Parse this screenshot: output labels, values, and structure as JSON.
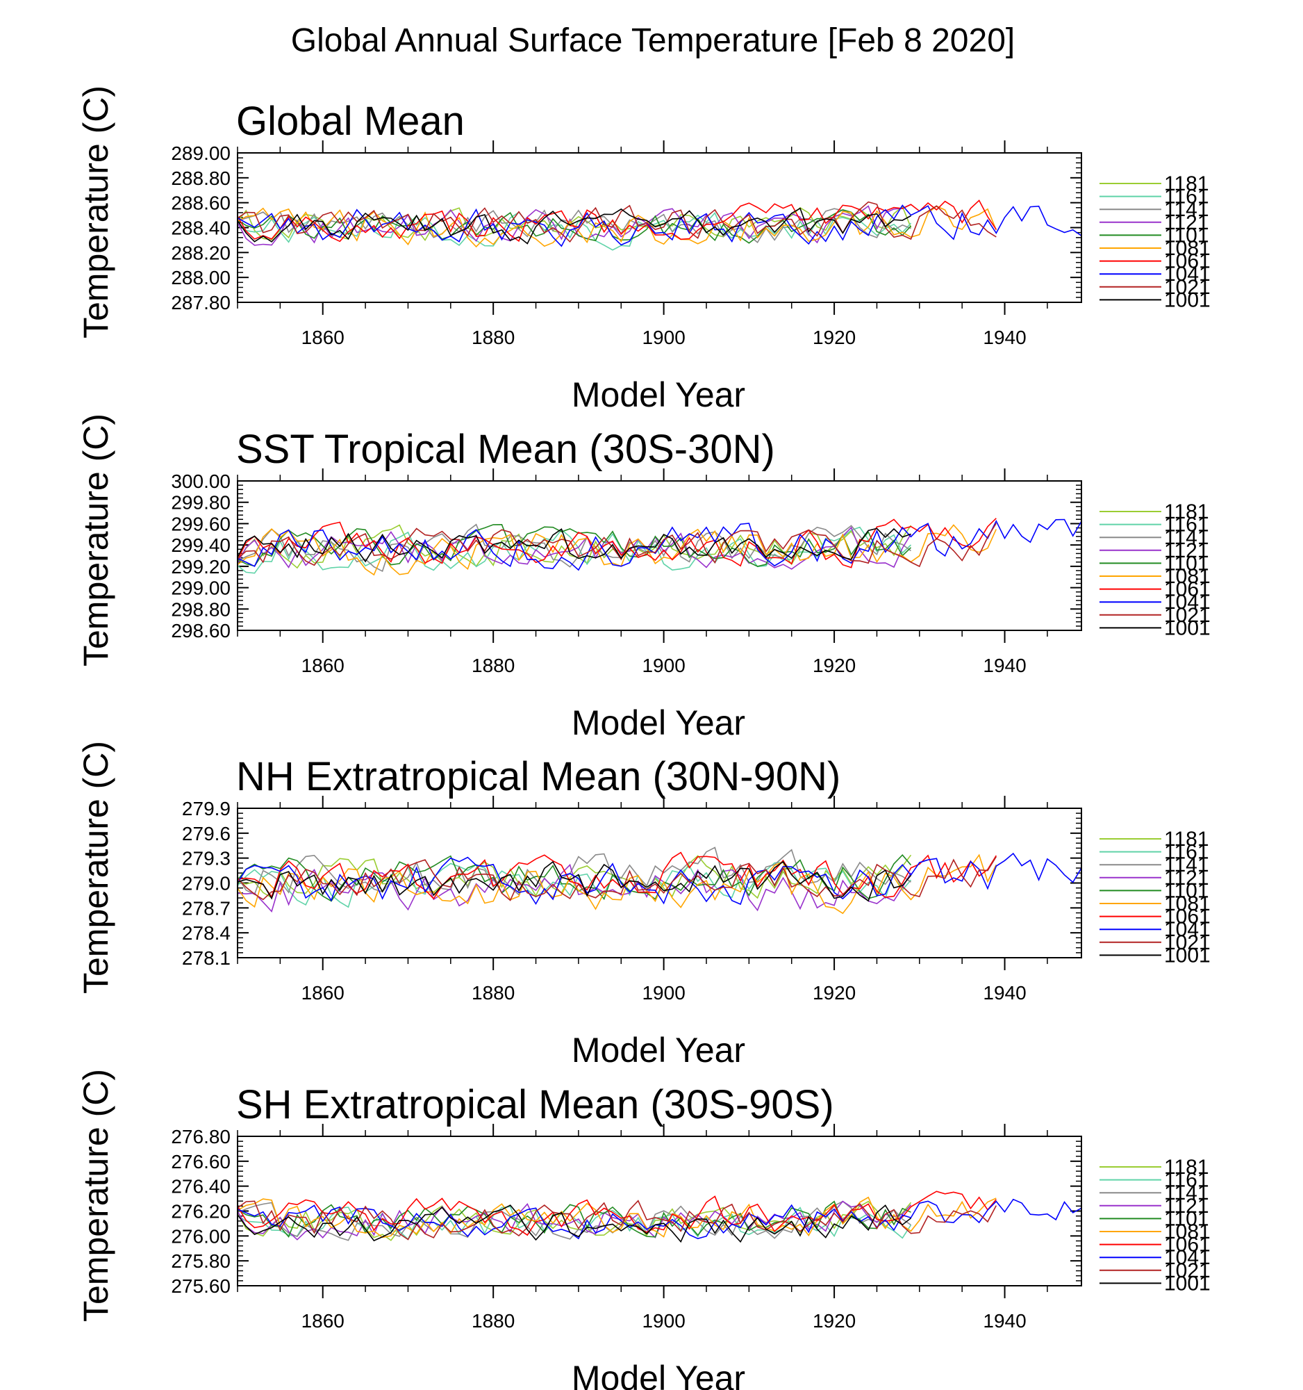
{
  "title": "Global Annual Surface Temperature [Feb  8 2020]",
  "legend_labels": [
    "1181",
    "1161",
    "1141",
    "1121",
    "1101",
    "1081",
    "1061",
    "1041",
    "1021",
    "1001"
  ],
  "series_colors": [
    "#9ACD32",
    "#5FD3A8",
    "#8A8A8A",
    "#9932CC",
    "#228B22",
    "#FFA500",
    "#FF0000",
    "#0000FF",
    "#B22222",
    "#000000"
  ],
  "chart_data": [
    {
      "type": "line",
      "title": "Global Mean",
      "xlabel": "Model Year",
      "ylabel": "Temperature (C)",
      "xlim": [
        1850,
        1949
      ],
      "ylim": [
        287.8,
        289.0
      ],
      "xticks": [
        1860,
        1880,
        1900,
        1920,
        1940
      ],
      "yticks": [
        "287.80",
        "288.00",
        "288.20",
        "288.40",
        "288.60",
        "288.80",
        "289.00"
      ],
      "series_summary": [
        {
          "name": "1181",
          "x_end": 1929,
          "base": 288.42,
          "amp": 0.12
        },
        {
          "name": "1161",
          "x_end": 1929,
          "base": 288.4,
          "amp": 0.13
        },
        {
          "name": "1141",
          "x_end": 1929,
          "base": 288.42,
          "amp": 0.12
        },
        {
          "name": "1121",
          "x_end": 1929,
          "base": 288.4,
          "amp": 0.13
        },
        {
          "name": "1101",
          "x_end": 1929,
          "base": 288.42,
          "amp": 0.12
        },
        {
          "name": "1081",
          "x_end": 1939,
          "base": 288.4,
          "amp": 0.14
        },
        {
          "name": "1061",
          "x_end": 1939,
          "base": 288.44,
          "amp": 0.13
        },
        {
          "name": "1041",
          "x_end": 1949,
          "base": 288.42,
          "amp": 0.14
        },
        {
          "name": "1021",
          "x_end": 1939,
          "base": 288.42,
          "amp": 0.13
        },
        {
          "name": "1001",
          "x_end": 1929,
          "base": 288.4,
          "amp": 0.12
        }
      ]
    },
    {
      "type": "line",
      "title": "SST Tropical Mean (30S-30N)",
      "xlabel": "Model Year",
      "ylabel": "Temperature (C)",
      "xlim": [
        1850,
        1949
      ],
      "ylim": [
        298.6,
        300.0
      ],
      "xticks": [
        1860,
        1880,
        1900,
        1920,
        1940
      ],
      "yticks": [
        "298.60",
        "298.80",
        "299.00",
        "299.20",
        "299.40",
        "299.60",
        "299.80",
        "300.00"
      ],
      "series_summary": [
        {
          "name": "1181",
          "x_end": 1929,
          "base": 299.38,
          "amp": 0.16
        },
        {
          "name": "1161",
          "x_end": 1929,
          "base": 299.35,
          "amp": 0.17
        },
        {
          "name": "1141",
          "x_end": 1929,
          "base": 299.38,
          "amp": 0.16
        },
        {
          "name": "1121",
          "x_end": 1929,
          "base": 299.36,
          "amp": 0.16
        },
        {
          "name": "1101",
          "x_end": 1929,
          "base": 299.38,
          "amp": 0.15
        },
        {
          "name": "1081",
          "x_end": 1939,
          "base": 299.35,
          "amp": 0.18
        },
        {
          "name": "1061",
          "x_end": 1939,
          "base": 299.38,
          "amp": 0.17
        },
        {
          "name": "1041",
          "x_end": 1949,
          "base": 299.4,
          "amp": 0.18
        },
        {
          "name": "1021",
          "x_end": 1939,
          "base": 299.38,
          "amp": 0.16
        },
        {
          "name": "1001",
          "x_end": 1929,
          "base": 299.38,
          "amp": 0.15
        }
      ]
    },
    {
      "type": "line",
      "title": "NH Extratropical Mean (30N-90N)",
      "xlabel": "Model Year",
      "ylabel": "Temperature (C)",
      "xlim": [
        1850,
        1949
      ],
      "ylim": [
        278.1,
        279.9
      ],
      "xticks": [
        1860,
        1880,
        1900,
        1920,
        1940
      ],
      "yticks": [
        "278.1",
        "278.4",
        "278.7",
        "279.0",
        "279.3",
        "279.6",
        "279.9"
      ],
      "series_summary": [
        {
          "name": "1181",
          "x_end": 1929,
          "base": 279.05,
          "amp": 0.22
        },
        {
          "name": "1161",
          "x_end": 1929,
          "base": 279.0,
          "amp": 0.22
        },
        {
          "name": "1141",
          "x_end": 1929,
          "base": 279.1,
          "amp": 0.24
        },
        {
          "name": "1121",
          "x_end": 1929,
          "base": 278.9,
          "amp": 0.25
        },
        {
          "name": "1101",
          "x_end": 1929,
          "base": 279.05,
          "amp": 0.22
        },
        {
          "name": "1081",
          "x_end": 1939,
          "base": 278.95,
          "amp": 0.26
        },
        {
          "name": "1061",
          "x_end": 1939,
          "base": 279.05,
          "amp": 0.24
        },
        {
          "name": "1041",
          "x_end": 1949,
          "base": 279.0,
          "amp": 0.24
        },
        {
          "name": "1021",
          "x_end": 1939,
          "base": 279.05,
          "amp": 0.22
        },
        {
          "name": "1001",
          "x_end": 1929,
          "base": 279.0,
          "amp": 0.22
        }
      ]
    },
    {
      "type": "line",
      "title": "SH Extratropical Mean (30S-90S)",
      "xlabel": "Model Year",
      "ylabel": "Temperature (C)",
      "xlim": [
        1850,
        1949
      ],
      "ylim": [
        275.6,
        276.8
      ],
      "xticks": [
        1860,
        1880,
        1900,
        1920,
        1940
      ],
      "yticks": [
        "275.60",
        "275.80",
        "276.00",
        "276.20",
        "276.40",
        "276.60",
        "276.80"
      ],
      "series_summary": [
        {
          "name": "1181",
          "x_end": 1929,
          "base": 276.12,
          "amp": 0.12
        },
        {
          "name": "1161",
          "x_end": 1929,
          "base": 276.1,
          "amp": 0.12
        },
        {
          "name": "1141",
          "x_end": 1929,
          "base": 276.12,
          "amp": 0.12
        },
        {
          "name": "1121",
          "x_end": 1929,
          "base": 276.12,
          "amp": 0.13
        },
        {
          "name": "1101",
          "x_end": 1929,
          "base": 276.13,
          "amp": 0.13
        },
        {
          "name": "1081",
          "x_end": 1939,
          "base": 276.12,
          "amp": 0.13
        },
        {
          "name": "1061",
          "x_end": 1939,
          "base": 276.15,
          "amp": 0.13
        },
        {
          "name": "1041",
          "x_end": 1949,
          "base": 276.13,
          "amp": 0.12
        },
        {
          "name": "1021",
          "x_end": 1939,
          "base": 276.13,
          "amp": 0.13
        },
        {
          "name": "1001",
          "x_end": 1929,
          "base": 276.08,
          "amp": 0.12
        }
      ]
    }
  ]
}
